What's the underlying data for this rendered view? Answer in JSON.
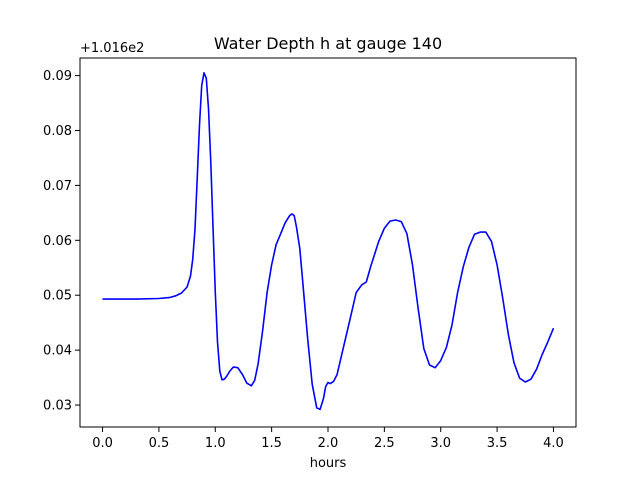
{
  "chart_data": {
    "type": "line",
    "title": "Water Depth h at gauge 140",
    "xlabel": "hours",
    "ylabel": "",
    "y_offset_label": "+1.016e2",
    "y_offset": 101.6,
    "xlim": [
      -0.2,
      4.2
    ],
    "ylim": [
      0.026,
      0.0932
    ],
    "x_ticks": [
      0.0,
      0.5,
      1.0,
      1.5,
      2.0,
      2.5,
      3.0,
      3.5,
      4.0
    ],
    "x_tick_labels": [
      "0.0",
      "0.5",
      "1.0",
      "1.5",
      "2.0",
      "2.5",
      "3.0",
      "3.5",
      "4.0"
    ],
    "y_ticks": [
      0.03,
      0.04,
      0.05,
      0.06,
      0.07,
      0.08,
      0.09
    ],
    "y_tick_labels": [
      "0.03",
      "0.04",
      "0.05",
      "0.06",
      "0.07",
      "0.08",
      "0.09"
    ],
    "grid": false,
    "color": "#0000ff",
    "series": [
      {
        "x": [
          0.0,
          0.3,
          0.5,
          0.6,
          0.65,
          0.7,
          0.75,
          0.78,
          0.8,
          0.82,
          0.84,
          0.86,
          0.88,
          0.9,
          0.92,
          0.94,
          0.96,
          0.98,
          1.0,
          1.02,
          1.04,
          1.06,
          1.08,
          1.1,
          1.13,
          1.16,
          1.2,
          1.24,
          1.28,
          1.32,
          1.35,
          1.38,
          1.42,
          1.46,
          1.5,
          1.54,
          1.58,
          1.62,
          1.66,
          1.68,
          1.7,
          1.72,
          1.75,
          1.78,
          1.82,
          1.86,
          1.9,
          1.93,
          1.96,
          1.98,
          2.0,
          2.02,
          2.05,
          2.08,
          2.12,
          2.16,
          2.2,
          2.25,
          2.3,
          2.34,
          2.38,
          2.4,
          2.45,
          2.5,
          2.55,
          2.6,
          2.65,
          2.7,
          2.75,
          2.8,
          2.85,
          2.9,
          2.95,
          3.0,
          3.05,
          3.1,
          3.15,
          3.2,
          3.25,
          3.3,
          3.35,
          3.4,
          3.45,
          3.5,
          3.55,
          3.6,
          3.65,
          3.7,
          3.75,
          3.8,
          3.85,
          3.9,
          3.95,
          4.0
        ],
        "y": [
          0.0493,
          0.0493,
          0.0494,
          0.0496,
          0.0499,
          0.0504,
          0.0515,
          0.0535,
          0.0565,
          0.062,
          0.0712,
          0.081,
          0.0882,
          0.0905,
          0.0895,
          0.084,
          0.0742,
          0.0625,
          0.0505,
          0.0415,
          0.0362,
          0.0346,
          0.0347,
          0.0352,
          0.0362,
          0.0369,
          0.0368,
          0.0356,
          0.034,
          0.0335,
          0.0345,
          0.0375,
          0.0435,
          0.0505,
          0.0555,
          0.0592,
          0.0612,
          0.0632,
          0.0645,
          0.0648,
          0.0645,
          0.0625,
          0.0585,
          0.0515,
          0.042,
          0.0338,
          0.0295,
          0.0292,
          0.0312,
          0.0334,
          0.0341,
          0.0339,
          0.0343,
          0.0355,
          0.039,
          0.0425,
          0.046,
          0.0505,
          0.0519,
          0.0524,
          0.0553,
          0.0566,
          0.0598,
          0.0622,
          0.0635,
          0.0637,
          0.0634,
          0.0612,
          0.0555,
          0.0475,
          0.0403,
          0.0373,
          0.0368,
          0.0381,
          0.0405,
          0.0446,
          0.0505,
          0.0552,
          0.0587,
          0.0611,
          0.0615,
          0.0615,
          0.0598,
          0.0555,
          0.0495,
          0.0428,
          0.0377,
          0.0349,
          0.0342,
          0.0347,
          0.0365,
          0.0392,
          0.0415,
          0.044
        ]
      }
    ]
  }
}
